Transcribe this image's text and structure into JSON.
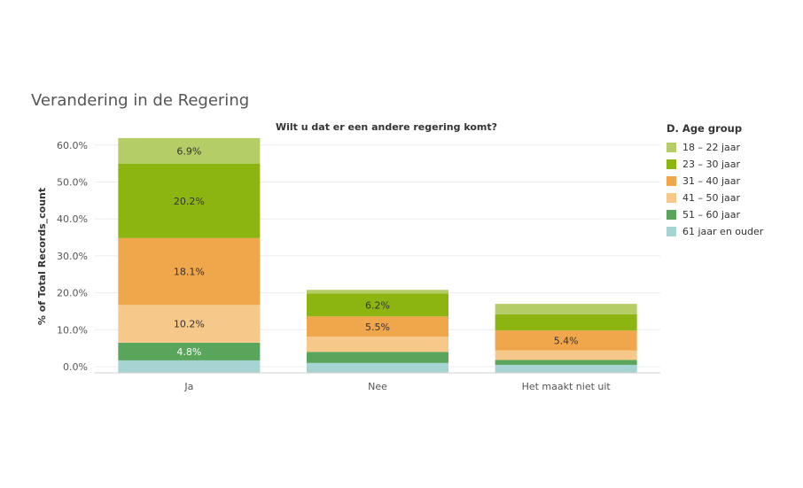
{
  "title": "Verandering in de Regering",
  "chart_data": {
    "type": "bar",
    "stacked": true,
    "title": "Wilt u dat er een andere regering komt?",
    "xlabel": "",
    "ylabel": "% of Total Records_count",
    "ylim": [
      0,
      63
    ],
    "yticks": [
      0,
      10,
      20,
      30,
      40,
      50,
      60
    ],
    "ytick_labels": [
      "0.0%",
      "10.0%",
      "20.0%",
      "30.0%",
      "40.0%",
      "50.0%",
      "60.0%"
    ],
    "categories": [
      "Ja",
      "Nee",
      "Het maakt niet uit"
    ],
    "legend_title": "D. Age group",
    "legend_position": "right",
    "series": [
      {
        "name": "61 jaar en ouder",
        "color": "#a6d4d2",
        "values": [
          1.7,
          1.0,
          0.5
        ],
        "labels": [
          "",
          "",
          ""
        ]
      },
      {
        "name": "51 – 60 jaar",
        "color": "#5aa55c",
        "values": [
          4.8,
          3.0,
          1.3
        ],
        "labels": [
          "4.8%",
          "",
          ""
        ]
      },
      {
        "name": "41 – 50 jaar",
        "color": "#f6c98b",
        "values": [
          10.2,
          4.1,
          2.6
        ],
        "labels": [
          "10.2%",
          "",
          ""
        ]
      },
      {
        "name": "31 – 40 jaar",
        "color": "#f0a64a",
        "values": [
          18.1,
          5.5,
          5.4
        ],
        "labels": [
          "18.1%",
          "5.5%",
          "5.4%"
        ]
      },
      {
        "name": "23 – 30 jaar",
        "color": "#8db512",
        "values": [
          20.2,
          6.2,
          4.4
        ],
        "labels": [
          "20.2%",
          "6.2%",
          ""
        ]
      },
      {
        "name": "18 – 22 jaar",
        "color": "#b5cd66",
        "values": [
          6.9,
          1.0,
          2.8
        ],
        "labels": [
          "6.9%",
          "",
          ""
        ]
      }
    ]
  }
}
